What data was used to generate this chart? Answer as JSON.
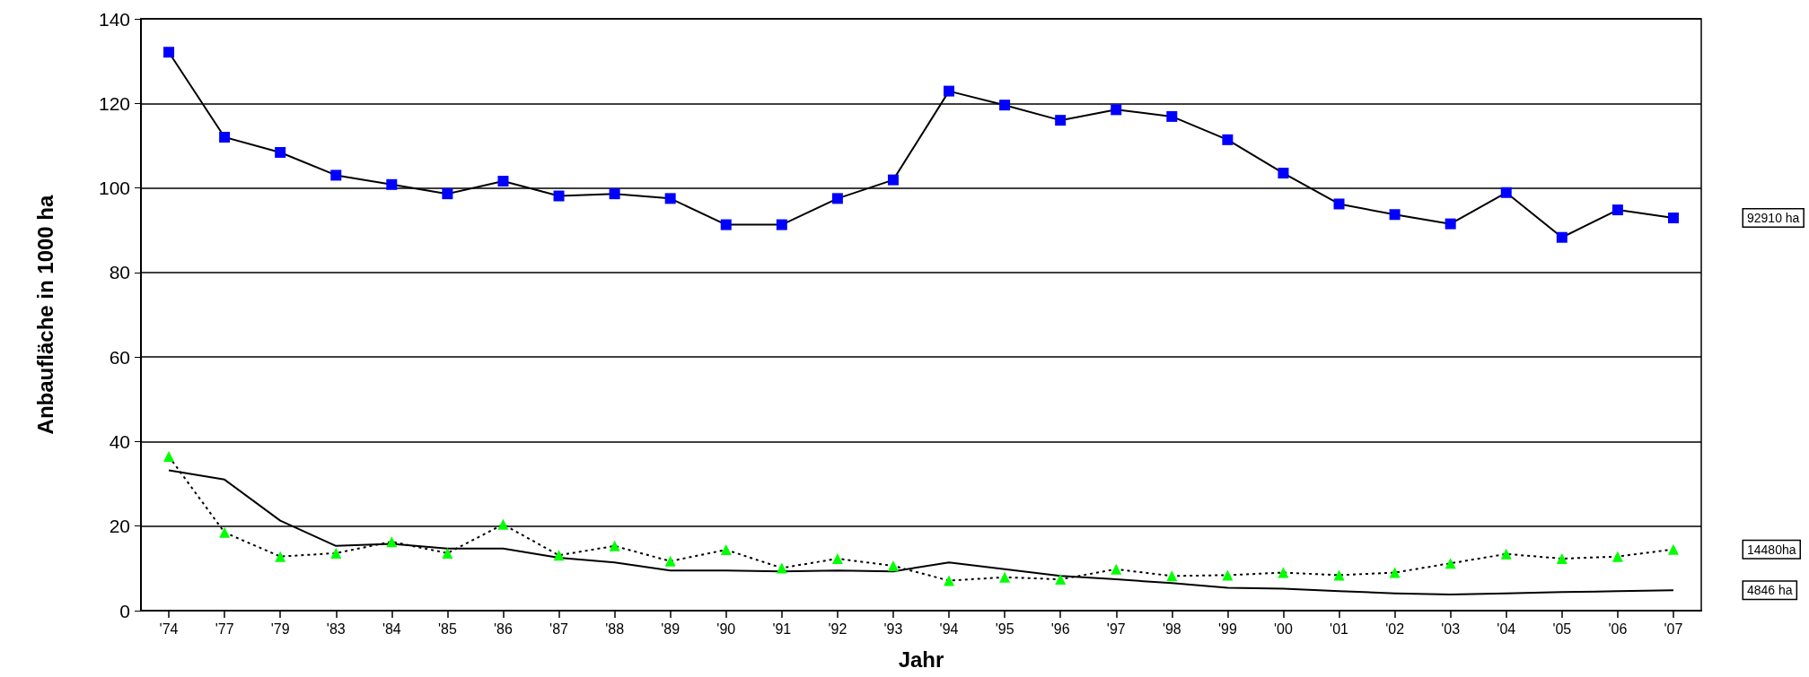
{
  "chart_data": {
    "type": "line",
    "xlabel": "Jahr",
    "ylabel": "Anbaufläche in 1000 ha",
    "categories": [
      "'74",
      "'77",
      "'79",
      "'83",
      "'84",
      "'85",
      "'86",
      "'87",
      "'88",
      "'89",
      "'90",
      "'91",
      "'92",
      "'93",
      "'94",
      "'95",
      "'96",
      "'97",
      "'98",
      "'99",
      "'00",
      "'01",
      "'02",
      "'03",
      "'04",
      "'05",
      "'06",
      "'07"
    ],
    "ylim": [
      0,
      140
    ],
    "yticks": [
      0,
      20,
      40,
      60,
      80,
      100,
      120,
      140
    ],
    "grid": "y",
    "annotations": [
      "92910 ha",
      "14480ha",
      "4846 ha"
    ],
    "series": [
      {
        "color": "#0000ff",
        "marker": "square",
        "line_style": "solid",
        "values": [
          132.1,
          112,
          108.4,
          103,
          100.8,
          98.6,
          101.6,
          98.1,
          98.6,
          97.5,
          91.3,
          91.3,
          97.5,
          101.9,
          122.9,
          119.6,
          116,
          118.5,
          116.9,
          111.4,
          103.5,
          96.2,
          93.7,
          91.5,
          98.9,
          88.3,
          94.8,
          92.9
        ]
      },
      {
        "color": "#00ff00",
        "marker": "triangle",
        "line_style": "dotted",
        "values": [
          36.5,
          18.5,
          12.8,
          13.6,
          16.3,
          13.6,
          20.4,
          13.1,
          15.3,
          11.7,
          14.4,
          10.1,
          12.3,
          10.6,
          7.1,
          7.9,
          7.4,
          9.8,
          8.2,
          8.4,
          9.0,
          8.4,
          9.0,
          11.2,
          13.4,
          12.3,
          12.8,
          14.5
        ]
      },
      {
        "color": "#000000",
        "marker": "none",
        "line_style": "solid",
        "values": [
          33.2,
          31,
          21.3,
          15.3,
          15.8,
          14.7,
          14.7,
          12.5,
          11.4,
          9.5,
          9.5,
          9.3,
          9.5,
          9.3,
          11.4,
          9.8,
          8.2,
          7.4,
          6.5,
          5.4,
          5.2,
          4.6,
          4.1,
          3.8,
          4.1,
          4.4,
          4.6,
          4.8
        ]
      }
    ]
  }
}
